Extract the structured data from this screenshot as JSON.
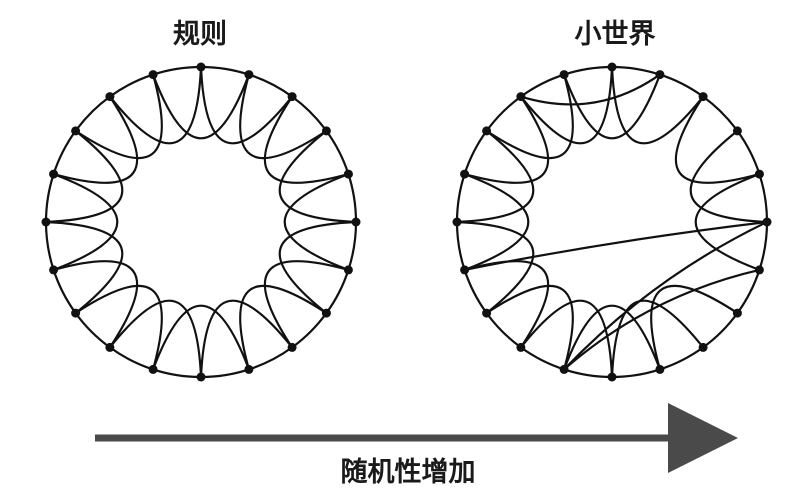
{
  "diagram": {
    "left_panel": {
      "label": "规则",
      "node_count": 20,
      "neighbors_each_side": 2
    },
    "right_panel": {
      "label": "小世界",
      "node_count": 20,
      "neighbors_each_side": 2,
      "rewired_edges": [
        {
          "from": 5,
          "to": 14
        },
        {
          "from": 5,
          "to": 11
        },
        {
          "from": 1,
          "to": 18
        },
        {
          "from": 6,
          "to": 11
        }
      ]
    },
    "arrow": {
      "label": "随机性增加",
      "color": "#4a4a4a"
    },
    "colors": {
      "edge": "#111111",
      "node": "#111111"
    }
  }
}
